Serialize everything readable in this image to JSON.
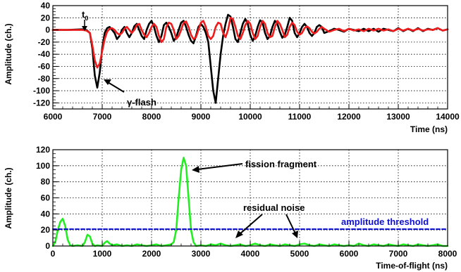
{
  "chart_data": [
    {
      "type": "line",
      "xlabel": "Time (ns)",
      "ylabel": "Amplitude (ch.)",
      "xlim": [
        6000,
        14000
      ],
      "ylim": [
        -130,
        40
      ],
      "xticks": [
        6000,
        7000,
        8000,
        9000,
        10000,
        11000,
        12000,
        13000,
        14000
      ],
      "xtick_labels": [
        "6000",
        "7000",
        "8000",
        "9000",
        "10000",
        "11000",
        "12000",
        "13000",
        "14000"
      ],
      "yticks": [
        -120,
        -100,
        -80,
        -60,
        -40,
        -20,
        0,
        20,
        40
      ],
      "ytick_labels": [
        "-120",
        "-100",
        "-80",
        "-60",
        "-40",
        "-20",
        "0",
        "20",
        "40"
      ],
      "grid": true,
      "series": [
        {
          "color": "#000000",
          "x": [
            6000,
            6300,
            6600,
            6680,
            6750,
            6800,
            6850,
            6900,
            6950,
            7000,
            7050,
            7100,
            7150,
            7200,
            7250,
            7300,
            7350,
            7400,
            7450,
            7500,
            7550,
            7600,
            7650,
            7700,
            7750,
            7800,
            7850,
            7900,
            7950,
            8000,
            8050,
            8100,
            8150,
            8200,
            8250,
            8300,
            8350,
            8400,
            8450,
            8500,
            8550,
            8600,
            8650,
            8700,
            8750,
            8800,
            8850,
            8900,
            8950,
            9000,
            9050,
            9100,
            9150,
            9200,
            9250,
            9300,
            9350,
            9400,
            9450,
            9500,
            9550,
            9600,
            9650,
            9700,
            9750,
            9800,
            9850,
            9900,
            9950,
            10000,
            10050,
            10100,
            10150,
            10200,
            10250,
            10300,
            10350,
            10400,
            10450,
            10500,
            10550,
            10600,
            10650,
            10700,
            10750,
            10800,
            10850,
            10900,
            10950,
            11000,
            11050,
            11100,
            11150,
            11200,
            11250,
            11300,
            11350,
            11400,
            11450,
            11500,
            11600,
            11700,
            11800,
            11900,
            12000,
            12100,
            12200,
            12300,
            12400,
            12500,
            12600,
            12700,
            12800,
            12900,
            13000,
            13100,
            13200,
            13300,
            13400,
            13500,
            13600,
            13700,
            13800,
            13900,
            14000
          ],
          "y": [
            0,
            0,
            1,
            0,
            -5,
            -30,
            -75,
            -95,
            -70,
            -30,
            -5,
            3,
            5,
            0,
            -5,
            -15,
            -10,
            0,
            5,
            -5,
            -12,
            -5,
            6,
            10,
            0,
            -10,
            -15,
            0,
            10,
            15,
            5,
            -10,
            -20,
            -10,
            8,
            12,
            5,
            -5,
            -18,
            -12,
            0,
            12,
            15,
            5,
            -8,
            -18,
            -22,
            -10,
            5,
            10,
            5,
            -5,
            -20,
            -60,
            -100,
            -120,
            -80,
            -40,
            -10,
            10,
            25,
            22,
            5,
            -15,
            -20,
            -5,
            10,
            18,
            10,
            -8,
            -18,
            -10,
            5,
            16,
            12,
            -5,
            -15,
            -10,
            5,
            15,
            10,
            -3,
            -13,
            -8,
            5,
            20,
            15,
            -5,
            -12,
            -5,
            5,
            10,
            5,
            -5,
            -10,
            -5,
            5,
            8,
            5,
            -5,
            -2,
            2,
            0,
            -3,
            2,
            0,
            -2,
            2,
            -2,
            2,
            -3,
            2,
            0,
            -2,
            3,
            -2,
            2,
            -2,
            3,
            -2,
            2,
            0,
            3,
            -1,
            1
          ],
          "name": ""
        },
        {
          "color": "#ee1c1c",
          "x": [
            6000,
            6300,
            6600,
            6680,
            6750,
            6800,
            6850,
            6900,
            6950,
            7000,
            7050,
            7100,
            7150,
            7200,
            7250,
            7300,
            7350,
            7400,
            7450,
            7500,
            7550,
            7600,
            7650,
            7700,
            7750,
            7800,
            7850,
            7900,
            7950,
            8000,
            8050,
            8100,
            8150,
            8200,
            8250,
            8300,
            8350,
            8400,
            8450,
            8500,
            8550,
            8600,
            8650,
            8700,
            8750,
            8800,
            8850,
            8900,
            8950,
            9000,
            9050,
            9100,
            9150,
            9200,
            9250,
            9300,
            9350,
            9400,
            9450,
            9500,
            9550,
            9600,
            9650,
            9700,
            9750,
            9800,
            9850,
            9900,
            9950,
            10000,
            10050,
            10100,
            10150,
            10200,
            10250,
            10300,
            10350,
            10400,
            10450,
            10500,
            10550,
            10600,
            10650,
            10700,
            10750,
            10800,
            10850,
            10900,
            10950,
            11000,
            11050,
            11100,
            11150,
            11200,
            11250,
            11300,
            11350,
            11400,
            11450,
            11500,
            11600,
            11700,
            11800,
            11900,
            12000,
            12100,
            12200,
            12300,
            12400,
            12500,
            12600,
            12700,
            12800,
            12900,
            13000,
            13100,
            13200,
            13300,
            13400,
            13500,
            13600,
            13700,
            13800,
            13900,
            14000
          ],
          "y": [
            0,
            0,
            0,
            -1,
            -5,
            -25,
            -50,
            -62,
            -55,
            -35,
            -15,
            -3,
            2,
            3,
            0,
            -5,
            -8,
            -5,
            2,
            5,
            0,
            -5,
            0,
            8,
            10,
            0,
            -8,
            -12,
            -5,
            5,
            10,
            5,
            -10,
            -20,
            -15,
            5,
            12,
            10,
            0,
            -15,
            -10,
            0,
            12,
            14,
            5,
            -8,
            -15,
            -12,
            0,
            12,
            15,
            5,
            -10,
            -15,
            -10,
            5,
            12,
            10,
            -5,
            -12,
            0,
            20,
            18,
            5,
            -10,
            -15,
            -5,
            8,
            15,
            10,
            -5,
            -15,
            -10,
            5,
            15,
            10,
            -5,
            -12,
            -10,
            5,
            15,
            10,
            0,
            -12,
            -8,
            5,
            12,
            8,
            -3,
            -8,
            -5,
            3,
            6,
            3,
            -3,
            -6,
            -3,
            2,
            5,
            2,
            -3,
            0,
            2,
            -2,
            2,
            -1,
            1,
            -2,
            2,
            -1,
            2,
            -1,
            1,
            -2,
            2,
            -1,
            2,
            -1,
            2,
            -1,
            1,
            0,
            3,
            -1,
            1
          ],
          "name": ""
        }
      ],
      "annotations": [
        {
          "text": "t",
          "subscript": "0",
          "x": 6650,
          "y": 30
        },
        {
          "text": "γ-flash",
          "x": 7500,
          "y": -95
        }
      ]
    },
    {
      "type": "line",
      "xlabel": "Time-of-flight (ns)",
      "ylabel": "Amplitude (ch.)",
      "xlim": [
        0,
        8000
      ],
      "ylim": [
        0,
        120
      ],
      "xticks": [
        0,
        1000,
        2000,
        3000,
        4000,
        5000,
        6000,
        7000,
        8000
      ],
      "xtick_labels": [
        "0",
        "1000",
        "2000",
        "3000",
        "4000",
        "5000",
        "6000",
        "7000",
        "8000"
      ],
      "yticks": [
        0,
        20,
        40,
        60,
        80,
        100,
        120
      ],
      "ytick_labels": [
        "0",
        "20",
        "40",
        "60",
        "80",
        "100",
        "120"
      ],
      "grid": true,
      "series": [
        {
          "color": "#22ee22",
          "x": [
            0,
            50,
            100,
            150,
            200,
            250,
            300,
            350,
            400,
            500,
            600,
            650,
            700,
            750,
            800,
            850,
            900,
            1000,
            1050,
            1100,
            1150,
            1200,
            1300,
            1400,
            1500,
            1600,
            1700,
            1800,
            1900,
            2000,
            2100,
            2200,
            2300,
            2400,
            2450,
            2500,
            2550,
            2600,
            2650,
            2700,
            2750,
            2800,
            2850,
            2900,
            3000,
            3100,
            3200,
            3300,
            3400,
            3500,
            3600,
            3700,
            3800,
            3900,
            4000,
            4100,
            4200,
            4300,
            4400,
            4500,
            4600,
            4700,
            4800,
            4900,
            5000,
            5100,
            5200,
            5300,
            5400,
            5500,
            5600,
            5700,
            5800,
            5900,
            6000,
            6100,
            6200,
            6300,
            6400,
            6500,
            6600,
            6700,
            6800,
            6900,
            7000,
            7100,
            7200,
            7300,
            7400,
            7500,
            7600,
            7700,
            7800,
            7900,
            8000
          ],
          "y": [
            0,
            5,
            20,
            30,
            34,
            25,
            8,
            1,
            0,
            1,
            0,
            5,
            14,
            12,
            3,
            0,
            1,
            0,
            4,
            6,
            3,
            1,
            2,
            0,
            1,
            0,
            2,
            1,
            0,
            1,
            2,
            0,
            1,
            2,
            5,
            20,
            60,
            95,
            110,
            100,
            60,
            20,
            5,
            0,
            1,
            0,
            2,
            1,
            3,
            1,
            0,
            1,
            2,
            0,
            1,
            3,
            1,
            0,
            2,
            1,
            0,
            2,
            1,
            0,
            2,
            3,
            1,
            0,
            2,
            1,
            0,
            2,
            1,
            0,
            1,
            0,
            3,
            1,
            0,
            2,
            1,
            0,
            2,
            1,
            0,
            2,
            1,
            0,
            2,
            1,
            0,
            1,
            2,
            0,
            0
          ]
        },
        {
          "name": "amplitude threshold",
          "color": "#1010d0",
          "style": "dashed",
          "x": [
            0,
            8000
          ],
          "y": [
            21,
            21
          ]
        }
      ],
      "annotations": [
        {
          "text": "fission fragment",
          "x": 3950,
          "y": 104
        },
        {
          "text": "residual noise",
          "x": 3950,
          "y": 48
        },
        {
          "text": "amplitude threshold",
          "x": 5900,
          "y": 29
        }
      ]
    }
  ]
}
